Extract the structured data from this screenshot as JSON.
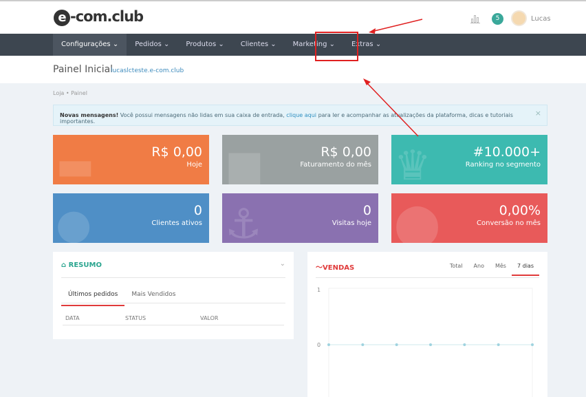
{
  "brand": {
    "logo": "e-com.club",
    "logo_mark": "e",
    "logo_rest": "-com.club"
  },
  "header": {
    "notifications": "5",
    "user": "Lucas"
  },
  "nav": [
    "Configurações ⌄",
    "Pedidos ⌄",
    "Produtos ⌄",
    "Clientes ⌄",
    "Marketing ⌄",
    "Extras ⌄"
  ],
  "page": {
    "title": "Painel Inicial",
    "domain": "lucaslcteste.e-com.club",
    "breadcrumb": "Loja  •  Painel"
  },
  "alert": {
    "bold": "Novas mensagens!",
    "text1": " Você possui mensagens não lidas em sua caixa de entrada, ",
    "link": "clique aqui",
    "text2": " para ler e acompanhar as atualizações da plataforma, dicas e tutoriais importantes.",
    "close": "×"
  },
  "cards": [
    {
      "value": "R$ 0,00",
      "label": "Hoje",
      "color": "#f07c45"
    },
    {
      "value": "R$ 0,00",
      "label": "Faturamento do mês",
      "color": "#9aa1a1"
    },
    {
      "value": "#10.000+",
      "label": "Ranking no segmento",
      "color": "#3dbab0"
    },
    {
      "value": "0",
      "label": "Clientes ativos",
      "color": "#4f8fc6"
    },
    {
      "value": "0",
      "label": "Visitas hoje",
      "color": "#8a71b0"
    },
    {
      "value": "0,00%",
      "label": "Conversão no mês",
      "color": "#e85a5a"
    }
  ],
  "resumo": {
    "title": "RESUMO",
    "tabs": [
      "Últimos pedidos",
      "Mais Vendidos"
    ],
    "columns": [
      "DATA",
      "STATUS",
      "VALOR"
    ]
  },
  "vendas": {
    "title": "VENDAS",
    "tabs": [
      "Total",
      "Ano",
      "Mês",
      "7 dias"
    ],
    "active_tab": "7 dias",
    "chart": {
      "type": "line",
      "y_ticks": [
        "1",
        "0"
      ],
      "ylim": [
        0,
        1
      ],
      "values": [
        0,
        0,
        0,
        0,
        0,
        0,
        0
      ]
    }
  },
  "colors": {
    "accent_red": "#e03a3a",
    "teal": "#2aa58f"
  }
}
